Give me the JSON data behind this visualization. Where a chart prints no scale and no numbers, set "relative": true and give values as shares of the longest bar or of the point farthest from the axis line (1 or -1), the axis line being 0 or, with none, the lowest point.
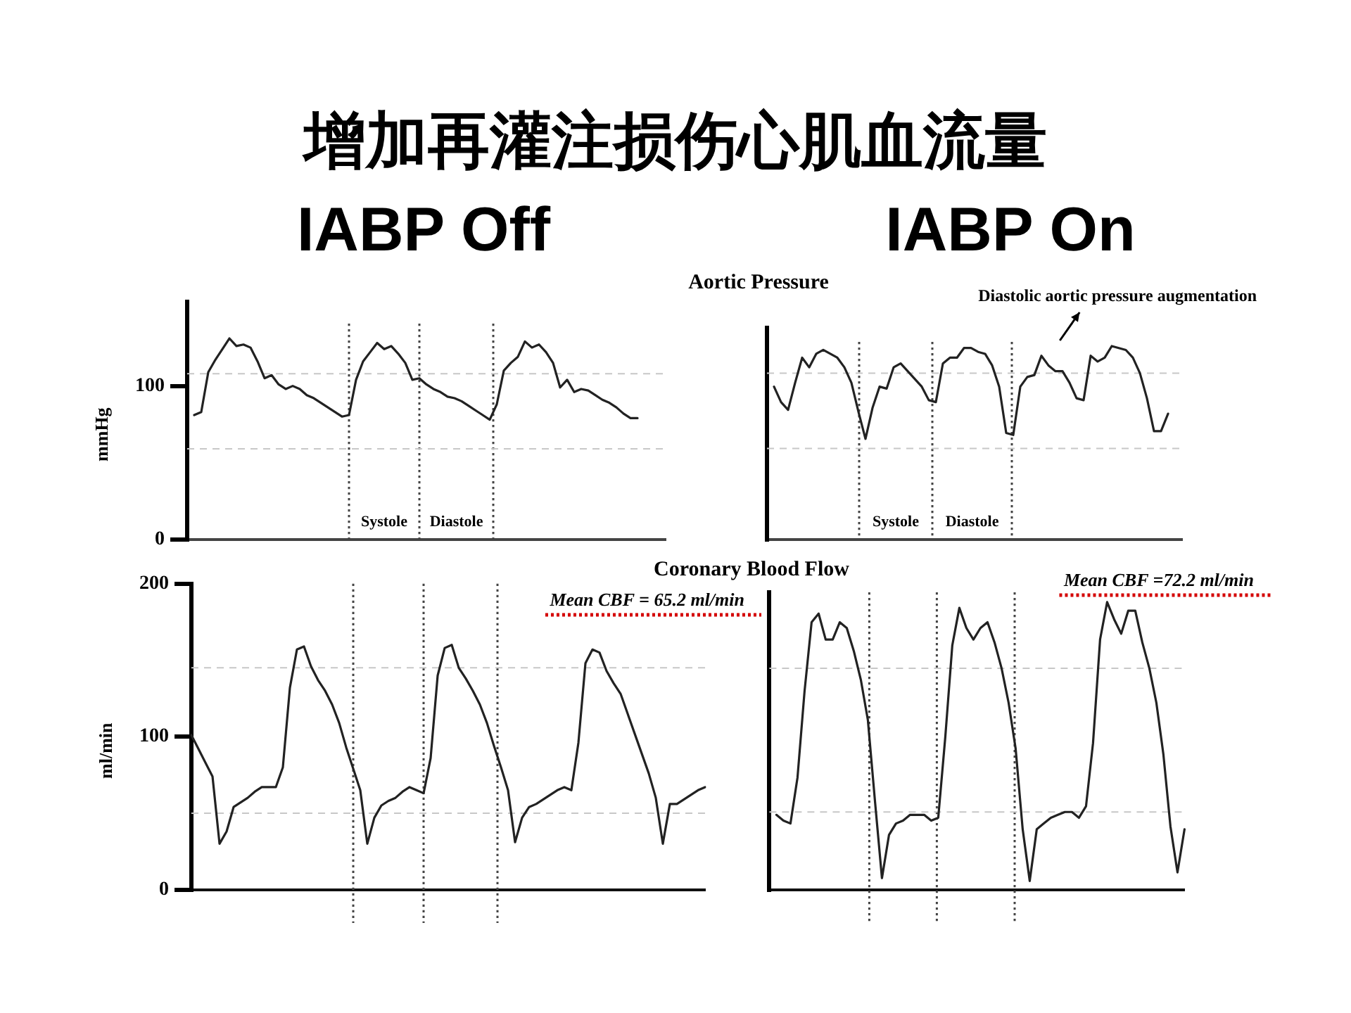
{
  "chart_data": [
    {
      "type": "line",
      "title": "增加再灌注损伤心肌血流量",
      "subtitle": "IABP Off",
      "ylabel": "mmHg",
      "categories": [
        null,
        null,
        null,
        null,
        null,
        null,
        null,
        null,
        null,
        null,
        null,
        null,
        null,
        null,
        null,
        null,
        null,
        null,
        null,
        null,
        null,
        null,
        null,
        null,
        null,
        null,
        null,
        null,
        null,
        null,
        null,
        null,
        null,
        null,
        null,
        null,
        null,
        null,
        null,
        null,
        null,
        null,
        null,
        null,
        null,
        null,
        null,
        null,
        null,
        null,
        null,
        null,
        null,
        null,
        null,
        null,
        null,
        null,
        null,
        null,
        null,
        null,
        null,
        null,
        null,
        null,
        null,
        null,
        null
      ],
      "values": [
        null,
        81,
        83,
        109,
        117,
        124,
        131,
        126,
        127,
        125,
        116,
        105,
        107,
        101,
        98,
        100,
        98,
        94,
        92,
        89,
        86,
        83,
        80,
        81,
        104,
        116,
        122,
        128,
        124,
        126,
        121,
        115,
        104,
        105,
        101,
        98,
        96,
        93,
        92,
        90,
        87,
        84,
        81,
        78,
        88,
        110,
        115,
        119,
        129,
        125,
        127,
        122,
        115,
        99,
        104,
        96,
        98,
        97,
        94,
        91,
        89,
        86,
        82,
        79,
        79,
        null,
        null,
        null,
        null
      ],
      "color": "#222222",
      "ylim": [
        0,
        155
      ],
      "yticks": [
        0,
        100
      ],
      "tick_labels": "y",
      "ref_lines": [
        {
          "axis": "y",
          "value": 108,
          "color": "#c8c8c8",
          "line_style": "dashed"
        },
        {
          "axis": "y",
          "value": 59,
          "color": "#c8c8c8",
          "line_style": "dashed"
        }
      ],
      "annotations": [
        "Systole",
        "Diastole"
      ]
    },
    {
      "type": "line",
      "title": "Aortic Pressure",
      "subtitle": "IABP On",
      "relative": true,
      "categories": [
        null,
        null,
        null,
        null,
        null,
        null,
        null,
        null,
        null,
        null,
        null,
        null,
        null,
        null,
        null,
        null,
        null,
        null,
        null,
        null,
        null,
        null,
        null,
        null,
        null,
        null,
        null,
        null,
        null,
        null,
        null,
        null,
        null,
        null,
        null,
        null,
        null,
        null,
        null,
        null,
        null,
        null,
        null,
        null,
        null,
        null,
        null,
        null,
        null,
        null,
        null,
        null,
        null,
        null,
        null,
        null,
        null,
        null,
        null,
        null
      ],
      "values": [
        null,
        0.79,
        0.71,
        0.67,
        0.81,
        0.94,
        0.89,
        0.96,
        0.98,
        0.96,
        0.94,
        0.89,
        0.81,
        0.66,
        0.52,
        0.68,
        0.79,
        0.78,
        0.89,
        0.91,
        0.87,
        0.83,
        0.79,
        0.72,
        0.71,
        0.91,
        0.94,
        0.94,
        0.99,
        0.99,
        0.97,
        0.96,
        0.9,
        0.79,
        0.55,
        0.54,
        0.79,
        0.84,
        0.85,
        0.95,
        0.9,
        0.87,
        0.87,
        0.81,
        0.73,
        0.72,
        0.95,
        0.92,
        0.94,
        1,
        0.99,
        0.98,
        0.94,
        0.86,
        0.73,
        0.56,
        0.56,
        0.65,
        null,
        null
      ],
      "color": "#222222",
      "tick_labels": false,
      "ref_lines": [
        {
          "axis": "y",
          "value": 0.86,
          "color": "#c8c8c8",
          "line_style": "dashed"
        },
        {
          "axis": "y",
          "value": 0.47,
          "color": "#c8c8c8",
          "line_style": "dashed"
        }
      ],
      "annotations": [
        "Systole",
        "Diastole",
        "Diastolic aortic pressure augmentation"
      ]
    },
    {
      "type": "line",
      "ylabel": "ml/min",
      "categories": [
        null,
        null,
        null,
        null,
        null,
        null,
        null,
        null,
        null,
        null,
        null,
        null,
        null,
        null,
        null,
        null,
        null,
        null,
        null,
        null,
        null,
        null,
        null,
        null,
        null,
        null,
        null,
        null,
        null,
        null,
        null,
        null,
        null,
        null,
        null,
        null,
        null,
        null,
        null,
        null,
        null,
        null,
        null,
        null,
        null,
        null,
        null,
        null,
        null,
        null,
        null,
        null,
        null,
        null,
        null,
        null,
        null,
        null,
        null,
        null,
        null,
        null,
        null,
        null,
        null,
        null,
        null,
        null,
        null,
        null,
        null,
        null,
        null,
        null
      ],
      "values": [
        101,
        92,
        83,
        74,
        30,
        38,
        54,
        57,
        60,
        64,
        67,
        67,
        67,
        80,
        132,
        157,
        159,
        146,
        137,
        130,
        121,
        109,
        93,
        79,
        65,
        30,
        47,
        55,
        58,
        60,
        64,
        67,
        65,
        63,
        86,
        140,
        158,
        160,
        145,
        138,
        130,
        121,
        109,
        94,
        80,
        65,
        31,
        47,
        54,
        56,
        59,
        62,
        65,
        67,
        65,
        96,
        148,
        157,
        155,
        143,
        135,
        128,
        115,
        102,
        89,
        76,
        60,
        30,
        56,
        56,
        59,
        62,
        65,
        67
      ],
      "color": "#222222",
      "ylim": [
        0,
        200
      ],
      "yticks": [
        0,
        100,
        200
      ],
      "tick_labels": "y",
      "ref_lines": [
        {
          "axis": "y",
          "value": 145,
          "color": "#c8c8c8",
          "line_style": "dashed"
        },
        {
          "axis": "y",
          "value": 50,
          "color": "#c8c8c8",
          "line_style": "dashed"
        }
      ],
      "annotations": [
        "Mean CBF = 65.2 ml/min"
      ]
    },
    {
      "type": "line",
      "title": "Coronary Blood Flow",
      "relative": true,
      "categories": [
        null,
        null,
        null,
        null,
        null,
        null,
        null,
        null,
        null,
        null,
        null,
        null,
        null,
        null,
        null,
        null,
        null,
        null,
        null,
        null,
        null,
        null,
        null,
        null,
        null,
        null,
        null,
        null,
        null,
        null,
        null,
        null,
        null,
        null,
        null,
        null,
        null,
        null,
        null,
        null,
        null,
        null,
        null,
        null,
        null,
        null,
        null,
        null,
        null,
        null,
        null,
        null,
        null,
        null,
        null,
        null,
        null,
        null,
        null,
        null
      ],
      "values": [
        null,
        0.26,
        0.24,
        0.23,
        0.39,
        0.69,
        0.93,
        0.96,
        0.87,
        0.87,
        0.93,
        0.91,
        0.83,
        0.73,
        0.59,
        0.31,
        0.04,
        0.19,
        0.23,
        0.24,
        0.26,
        0.26,
        0.26,
        0.24,
        0.25,
        0.53,
        0.85,
        0.98,
        0.91,
        0.87,
        0.91,
        0.93,
        0.86,
        0.77,
        0.65,
        0.49,
        0.21,
        0.03,
        0.21,
        0.23,
        0.25,
        0.26,
        0.27,
        0.27,
        0.25,
        0.29,
        0.51,
        0.87,
        1,
        0.94,
        0.89,
        0.97,
        0.97,
        0.86,
        0.77,
        0.65,
        0.47,
        0.22,
        0.06,
        0.21
      ],
      "color": "#222222",
      "tick_labels": false,
      "ref_lines": [
        {
          "axis": "y",
          "value": 0.77,
          "color": "#c8c8c8",
          "line_style": "dashed"
        },
        {
          "axis": "y",
          "value": 0.27,
          "color": "#c8c8c8",
          "line_style": "dashed"
        }
      ],
      "annotations": [
        "Mean CBF =72.2 ml/min"
      ]
    }
  ]
}
